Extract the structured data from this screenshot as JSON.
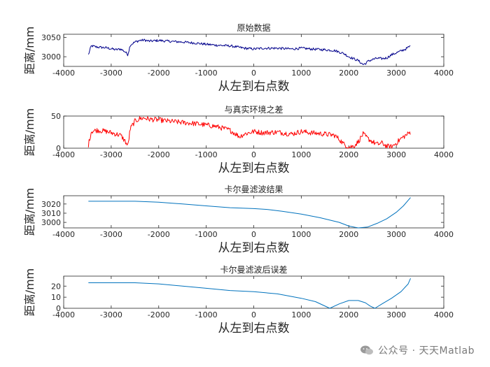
{
  "watermark": {
    "text": "公众号 · 天天Matlab",
    "icon": "wechat-icon"
  },
  "chart_data": [
    {
      "type": "line",
      "title": "原始数据",
      "xlabel": "从左到右点数",
      "ylabel": "距离/mm",
      "xlim": [
        -4000,
        4000
      ],
      "ylim": [
        2975,
        3058
      ],
      "xticks": [
        -4000,
        -3000,
        -2000,
        -1000,
        0,
        1000,
        2000,
        3000,
        4000
      ],
      "yticks": [
        3000,
        3050
      ],
      "grid": false,
      "legend": "none",
      "series": [
        {
          "color": "#00008b",
          "noisy": true,
          "noise": 3.2,
          "x": [
            -3480,
            -3420,
            -3300,
            -3100,
            -2900,
            -2800,
            -2700,
            -2650,
            -2600,
            -2500,
            -2400,
            -2300,
            -2200,
            -2000,
            -1800,
            -1500,
            -1200,
            -1000,
            -800,
            -500,
            -200,
            0,
            200,
            500,
            800,
            1000,
            1200,
            1500,
            1700,
            1900,
            2000,
            2100,
            2200,
            2250,
            2300,
            2350,
            2400,
            2500,
            2600,
            2700,
            2800,
            2900,
            3000,
            3100,
            3200,
            3300
          ],
          "y": [
            3005,
            3028,
            3025,
            3023,
            3018,
            3020,
            3012,
            3005,
            3030,
            3038,
            3042,
            3043,
            3040,
            3042,
            3040,
            3038,
            3035,
            3032,
            3030,
            3028,
            3022,
            3020,
            3022,
            3022,
            3020,
            3022,
            3020,
            3018,
            3016,
            3008,
            3000,
            2995,
            2990,
            2985,
            2980,
            2982,
            2988,
            2993,
            2996,
            2995,
            2997,
            3005,
            3010,
            3015,
            3020,
            3028
          ]
        }
      ]
    },
    {
      "type": "line",
      "title": "与真实环境之差",
      "xlabel": "从左到右点数",
      "ylabel": "距离/mm",
      "xlim": [
        -4000,
        4000
      ],
      "ylim": [
        0,
        50
      ],
      "xticks": [
        -4000,
        -3000,
        -2000,
        -1000,
        0,
        1000,
        2000,
        3000,
        4000
      ],
      "yticks": [
        0,
        50
      ],
      "grid": false,
      "legend": "none",
      "series": [
        {
          "color": "#ff0000",
          "noisy": true,
          "noise": 4,
          "x": [
            -3480,
            -3420,
            -3300,
            -3100,
            -2900,
            -2800,
            -2700,
            -2650,
            -2600,
            -2500,
            -2400,
            -2300,
            -2200,
            -2000,
            -1800,
            -1500,
            -1200,
            -1000,
            -800,
            -500,
            -300,
            -200,
            0,
            200,
            500,
            800,
            1000,
            1200,
            1500,
            1700,
            1800,
            1900,
            2000,
            2100,
            2200,
            2300,
            2400,
            2500,
            2600,
            2700,
            2800,
            2900,
            3000,
            3100,
            3200,
            3300
          ],
          "y": [
            5,
            26,
            28,
            26,
            22,
            20,
            10,
            3,
            30,
            42,
            46,
            47,
            45,
            44,
            42,
            40,
            38,
            36,
            34,
            28,
            18,
            22,
            26,
            24,
            25,
            22,
            26,
            24,
            22,
            20,
            14,
            6,
            2,
            3,
            10,
            22,
            15,
            10,
            6,
            8,
            3,
            2,
            8,
            15,
            20,
            25
          ]
        }
      ]
    },
    {
      "type": "line",
      "title": "卡尔曼滤波结果",
      "xlabel": "从左到右点数",
      "ylabel": "距离/mm",
      "xlim": [
        -4000,
        4000
      ],
      "ylim": [
        2994,
        3029
      ],
      "xticks": [
        -4000,
        -3000,
        -2000,
        -1000,
        0,
        1000,
        2000,
        3000,
        4000
      ],
      "yticks": [
        3000,
        3010,
        3020
      ],
      "grid": false,
      "legend": "none",
      "series": [
        {
          "color": "#0072bd",
          "noisy": false,
          "x": [
            -3480,
            -3000,
            -2500,
            -2000,
            -1500,
            -1000,
            -500,
            0,
            300,
            600,
            1000,
            1400,
            1800,
            2000,
            2200,
            2400,
            2600,
            2800,
            3000,
            3150,
            3250,
            3300
          ],
          "y": [
            3023,
            3023,
            3023,
            3022,
            3020,
            3018,
            3016,
            3015,
            3014,
            3012,
            3009,
            3005,
            3000,
            2996,
            2994,
            2995,
            2999,
            3004,
            3011,
            3018,
            3024,
            3027
          ]
        }
      ]
    },
    {
      "type": "line",
      "title": "卡尔曼滤波后误差",
      "xlabel": "从左到右点数",
      "ylabel": "距离/mm",
      "xlim": [
        -4000,
        4000
      ],
      "ylim": [
        0,
        29
      ],
      "xticks": [
        -4000,
        -3000,
        -2000,
        -1000,
        0,
        1000,
        2000,
        3000,
        4000
      ],
      "yticks": [
        0,
        10,
        20
      ],
      "grid": false,
      "legend": "none",
      "series": [
        {
          "color": "#0072bd",
          "noisy": false,
          "x": [
            -3480,
            -3000,
            -2500,
            -2000,
            -1500,
            -1000,
            -500,
            0,
            500,
            1000,
            1300,
            1600,
            1800,
            2000,
            2200,
            2350,
            2450,
            2550,
            2700,
            2900,
            3100,
            3250,
            3300
          ],
          "y": [
            23,
            23,
            23,
            22,
            20,
            18,
            16,
            15,
            13,
            9,
            6,
            0,
            4,
            7,
            7,
            5,
            2,
            0,
            4,
            9,
            15,
            22,
            27
          ]
        }
      ]
    }
  ]
}
